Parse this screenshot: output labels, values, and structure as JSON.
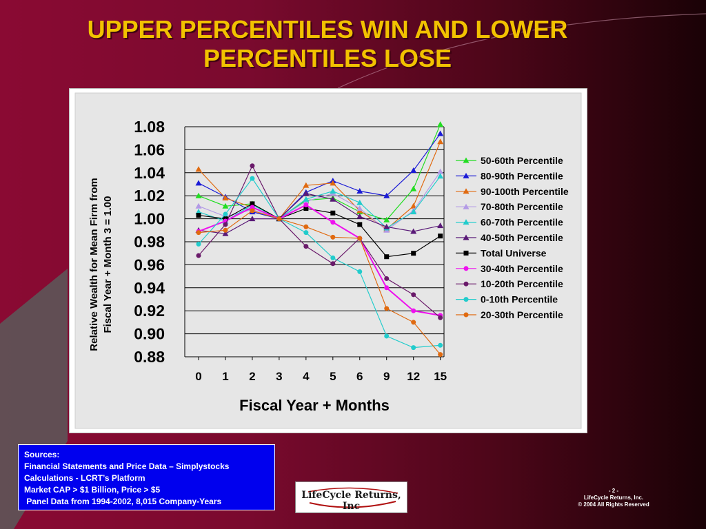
{
  "slide": {
    "title_line1": "UPPER PERCENTILES WIN AND LOWER",
    "title_line2": "PERCENTILES LOSE"
  },
  "sources": {
    "lines": [
      "Sources:",
      "Financial Statements and Price Data – Simplystocks",
      "Calculations - LCRT’s Platform",
      "Market CAP > $1 Billion, Price > $5",
      " Panel Data from 1994-2002, 8,015 Company-Years"
    ]
  },
  "logo": {
    "text": "LifeCycle Returns, Inc"
  },
  "footer": {
    "page": "- 2 -",
    "company": "LifeCycle Returns, Inc.",
    "copyright": "© 2004 All Rights Reserved"
  },
  "colors": {
    "title": "#f2c200",
    "sources_bg": "#0000ee"
  },
  "chart_data": {
    "type": "line",
    "categories": [
      "0",
      "1",
      "2",
      "3",
      "4",
      "5",
      "6",
      "9",
      "12",
      "15"
    ],
    "xlabel": "Fiscal Year + Months",
    "ylabel_line1": "Relative Wealth for Mean Firm from",
    "ylabel_line2": "Fiscal Year + Month 3 = 1.00",
    "ylim": [
      0.88,
      1.08
    ],
    "yticks": [
      "1.08",
      "1.06",
      "1.04",
      "1.02",
      "1.00",
      "0.98",
      "0.96",
      "0.94",
      "0.92",
      "0.90",
      "0.88"
    ],
    "grid": true,
    "legend_position": "right",
    "series": [
      {
        "name": "50-60th Percentile",
        "color": "#22dd22",
        "marker": "triangle",
        "values": [
          1.02,
          1.011,
          1.013,
          1.0,
          1.016,
          1.018,
          1.006,
          0.999,
          1.026,
          1.082
        ]
      },
      {
        "name": "80-90th Percentile",
        "color": "#1a1ad6",
        "marker": "triangle",
        "values": [
          1.031,
          1.019,
          1.006,
          1.0,
          1.023,
          1.033,
          1.024,
          1.02,
          1.042,
          1.074
        ]
      },
      {
        "name": "90-100th Percentile",
        "color": "#e06a10",
        "marker": "triangle",
        "values": [
          1.043,
          1.018,
          1.01,
          1.0,
          1.029,
          1.031,
          1.007,
          0.991,
          1.011,
          1.067
        ]
      },
      {
        "name": "70-80th Percentile",
        "color": "#b39ae6",
        "marker": "triangle",
        "values": [
          1.011,
          1.002,
          1.008,
          1.0,
          1.015,
          1.022,
          1.009,
          0.99,
          1.007,
          1.041
        ]
      },
      {
        "name": "60-70th Percentile",
        "color": "#22cccc",
        "marker": "triangle",
        "values": [
          1.006,
          0.998,
          1.012,
          1.0,
          1.017,
          1.024,
          1.014,
          0.992,
          1.006,
          1.037
        ]
      },
      {
        "name": "40-50th Percentile",
        "color": "#5a1a78",
        "marker": "triangle",
        "values": [
          0.99,
          0.987,
          1.0,
          1.0,
          1.022,
          1.017,
          1.002,
          0.993,
          0.989,
          0.994
        ]
      },
      {
        "name": "Total Universe",
        "color": "#000000",
        "marker": "square",
        "values": [
          1.003,
          1.0,
          1.013,
          1.0,
          1.009,
          1.005,
          0.995,
          0.967,
          0.97,
          0.985
        ]
      },
      {
        "name": "30-40th Percentile",
        "color": "#ee11ee",
        "marker": "circle",
        "values": [
          0.989,
          0.998,
          1.01,
          1.0,
          1.012,
          0.997,
          0.983,
          0.94,
          0.92,
          0.916
        ]
      },
      {
        "name": "10-20th Percentile",
        "color": "#6a1a6a",
        "marker": "circle",
        "values": [
          0.968,
          0.995,
          1.046,
          1.0,
          0.976,
          0.961,
          0.983,
          0.948,
          0.934,
          0.914
        ]
      },
      {
        "name": "0-10th Percentile",
        "color": "#22cccc",
        "marker": "circle",
        "values": [
          0.978,
          1.004,
          1.035,
          1.0,
          0.988,
          0.966,
          0.954,
          0.898,
          0.888,
          0.89
        ]
      },
      {
        "name": "20-30th Percentile",
        "color": "#e06a10",
        "marker": "circle",
        "values": [
          0.988,
          0.99,
          1.007,
          1.0,
          0.993,
          0.984,
          0.983,
          0.922,
          0.91,
          0.882
        ]
      }
    ]
  }
}
